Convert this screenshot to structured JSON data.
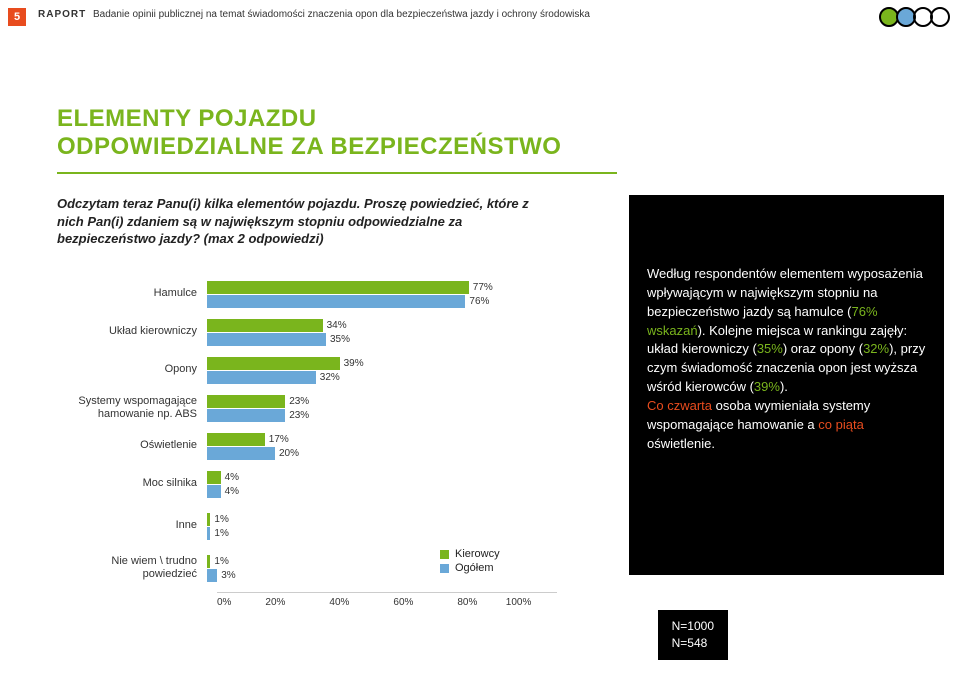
{
  "page_number": "5",
  "header": {
    "badge": "RAPORT",
    "text": "Badanie opinii publicznej na temat świadomości znaczenia opon dla bezpieczeństwa jazdy i ochrony środowiska"
  },
  "logo_colors": [
    "#7ab51d",
    "#6aa8d8",
    "#000000",
    "#000000"
  ],
  "title_line1": "ELEMENTY POJAZDU",
  "title_line2": "ODPOWIEDZIALNE ZA BEZPIECZEŃSTWO",
  "title_color": "#7ab51d",
  "question": "Odczytam teraz Panu(i) kilka elementów pojazdu. Proszę powiedzieć, które z nich Pan(i) zdaniem są w największym stopniu odpowiedzialne za bezpieczeństwo jazdy? (max 2 odpowiedzi)",
  "chart": {
    "type": "bar",
    "orientation": "horizontal",
    "x_max_pct": 100,
    "axis_ticks": [
      "0%",
      "20%",
      "40%",
      "60%",
      "80%",
      "100%"
    ],
    "series_colors": {
      "kierowcy": "#7ab51d",
      "ogolem": "#6aa8d8"
    },
    "categories": [
      {
        "label": "Hamulce",
        "kierowcy": 77,
        "ogolem": 76
      },
      {
        "label": "Układ kierowniczy",
        "kierowcy": 34,
        "ogolem": 35
      },
      {
        "label": "Opony",
        "kierowcy": 39,
        "ogolem": 32
      },
      {
        "label": "Systemy wspomagające hamowanie np. ABS",
        "kierowcy": 23,
        "ogolem": 23
      },
      {
        "label": "Oświetlenie",
        "kierowcy": 17,
        "ogolem": 20
      },
      {
        "label": "Moc silnika",
        "kierowcy": 4,
        "ogolem": 4
      },
      {
        "label": "Inne",
        "kierowcy": 1,
        "ogolem": 1
      },
      {
        "label": "Nie wiem \\ trudno powiedzieć",
        "kierowcy": 1,
        "ogolem": 3
      }
    ],
    "legend": [
      {
        "label": "Kierowcy",
        "color": "#7ab51d"
      },
      {
        "label": "Ogółem",
        "color": "#6aa8d8"
      }
    ]
  },
  "commentary": {
    "pre1": "Według respondentów elementem wyposażenia wpływającym w największym stopniu na bezpieczeństwo jazdy są hamulce (",
    "h1": "76% wskazań",
    "mid1": "). Kolejne miejsca w rankingu zajęły: układ kierowniczy (",
    "h2": "35%",
    "mid2": ") oraz opony (",
    "h3": "32%",
    "mid3": "), przy czym świadomość znaczenia opon jest wyższa wśród kierowców (",
    "h4": "39%",
    "post1": ").",
    "br": " ",
    "pre2": "Co czwarta",
    "mid4": " osoba wymieniała systemy wspomagające hamowanie a ",
    "h5": "co piąta",
    "post2": " oświetlenie."
  },
  "n_box": {
    "n1": "N=1000",
    "n2": "N=548"
  }
}
